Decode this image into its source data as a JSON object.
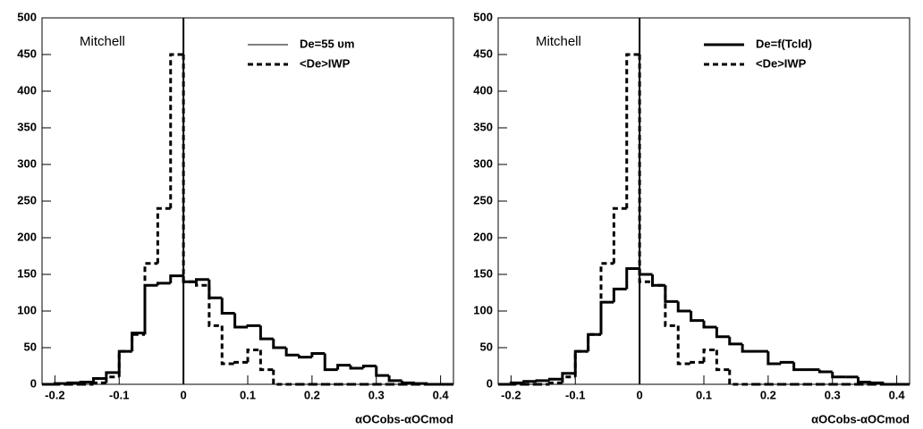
{
  "chart_data": [
    {
      "type": "histogram",
      "annotation": "Mitchell",
      "xlabel": "αOCobs-αOCmod",
      "bins": [
        -0.22,
        -0.2,
        -0.18,
        -0.16,
        -0.14,
        -0.12,
        -0.1,
        -0.08,
        -0.06,
        -0.04,
        -0.02,
        0,
        0.02,
        0.04,
        0.06,
        0.08,
        0.1,
        0.12,
        0.14,
        0.16,
        0.18,
        0.2,
        0.22,
        0.24,
        0.26,
        0.28,
        0.3,
        0.32,
        0.34,
        0.36,
        0.38,
        0.4,
        0.42
      ],
      "series": [
        {
          "name": "De=55 υm",
          "color": "#000000",
          "dash": false,
          "values": [
            0,
            1,
            2,
            3,
            8,
            16,
            45,
            70,
            135,
            138,
            148,
            140,
            143,
            118,
            97,
            78,
            80,
            62,
            50,
            40,
            37,
            42,
            20,
            26,
            22,
            25,
            12,
            5,
            2,
            1,
            0,
            0
          ]
        },
        {
          "name": "<De>IWP",
          "color": "#000000",
          "dash": true,
          "values": [
            0,
            0,
            0,
            0,
            2,
            10,
            45,
            68,
            165,
            240,
            450,
            140,
            135,
            80,
            28,
            30,
            47,
            20,
            0,
            0,
            0,
            0,
            0,
            0,
            0,
            0,
            0,
            0,
            0,
            0,
            0,
            0
          ]
        }
      ],
      "vline": 0,
      "xlim": [
        -0.22,
        0.42
      ],
      "ylim": [
        0,
        500
      ],
      "xticks": [
        -0.2,
        -0.1,
        0,
        0.1,
        0.2,
        0.3,
        0.4
      ],
      "yticks": [
        0,
        50,
        100,
        150,
        200,
        250,
        300,
        350,
        400,
        450,
        500
      ]
    },
    {
      "type": "histogram",
      "annotation": "Mitchell",
      "xlabel": "αOCobs-αOCmod",
      "bins": [
        -0.22,
        -0.2,
        -0.18,
        -0.16,
        -0.14,
        -0.12,
        -0.1,
        -0.08,
        -0.06,
        -0.04,
        -0.02,
        0,
        0.02,
        0.04,
        0.06,
        0.08,
        0.1,
        0.12,
        0.14,
        0.16,
        0.18,
        0.2,
        0.22,
        0.24,
        0.26,
        0.28,
        0.3,
        0.32,
        0.34,
        0.36,
        0.38,
        0.4,
        0.42
      ],
      "series": [
        {
          "name": "De=f(Tcld)",
          "color": "#000000",
          "dash": false,
          "values": [
            0,
            2,
            4,
            5,
            7,
            15,
            45,
            68,
            112,
            130,
            158,
            150,
            135,
            113,
            100,
            87,
            78,
            65,
            55,
            45,
            45,
            28,
            30,
            20,
            20,
            17,
            10,
            10,
            3,
            2,
            0,
            0
          ]
        },
        {
          "name": "<De>IWP",
          "color": "#000000",
          "dash": true,
          "values": [
            0,
            0,
            0,
            0,
            2,
            10,
            45,
            68,
            165,
            240,
            450,
            140,
            135,
            80,
            28,
            30,
            47,
            20,
            0,
            0,
            0,
            0,
            0,
            0,
            0,
            0,
            0,
            0,
            0,
            0,
            0,
            0
          ]
        }
      ],
      "vline": 0,
      "xlim": [
        -0.22,
        0.42
      ],
      "ylim": [
        0,
        500
      ],
      "xticks": [
        -0.2,
        -0.1,
        0,
        0.1,
        0.2,
        0.3,
        0.4
      ],
      "yticks": [
        0,
        50,
        100,
        150,
        200,
        250,
        300,
        350,
        400,
        450,
        500
      ]
    }
  ]
}
